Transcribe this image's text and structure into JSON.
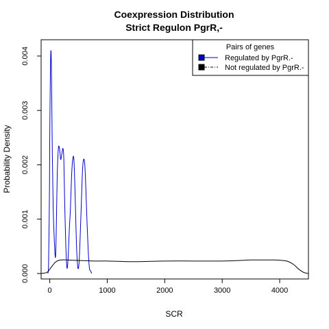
{
  "chart_data": {
    "type": "line",
    "title": "Coexpression Distribution",
    "subtitle": "Strict Regulon PgrR,-",
    "xlabel": "SCR",
    "ylabel": "Probability Density",
    "xlim": [
      -150,
      4500
    ],
    "ylim": [
      -0.0001,
      0.0043
    ],
    "xticks": [
      0,
      1000,
      2000,
      3000,
      4000
    ],
    "yticks": [
      0.0,
      0.001,
      0.002,
      0.003,
      0.004
    ],
    "xtick_labels": [
      "0",
      "1000",
      "2000",
      "3000",
      "4000"
    ],
    "ytick_labels": [
      "0.000",
      "0.001",
      "0.002",
      "0.003",
      "0.004"
    ],
    "legend": {
      "title": "Pairs of genes",
      "position": "top-right",
      "entries": [
        "Regulated by  PgrR.-",
        "Not regulated by  PgrR.-"
      ]
    },
    "series": [
      {
        "color": "#0000cc",
        "line_style": "solid",
        "x": [
          -35,
          -20,
          -5,
          0,
          10,
          20,
          30,
          45,
          60,
          80,
          100,
          115,
          130,
          150,
          170,
          190,
          210,
          230,
          245,
          260,
          280,
          300,
          320,
          340,
          360,
          380,
          400,
          420,
          440,
          455,
          470,
          490,
          510,
          530,
          550,
          570,
          590,
          610,
          630,
          650,
          670,
          690,
          710,
          730
        ],
        "y": [
          0.0,
          0.0002,
          0.0015,
          0.0025,
          0.0036,
          0.0041,
          0.0037,
          0.0022,
          0.0012,
          0.0006,
          0.0003,
          0.0009,
          0.0018,
          0.0023,
          0.0023,
          0.0021,
          0.0022,
          0.0023,
          0.0021,
          0.0013,
          0.0005,
          0.0001,
          0.0003,
          0.0008,
          0.0012,
          0.0018,
          0.0021,
          0.0021,
          0.0015,
          0.0009,
          0.0004,
          0.0001,
          0.0002,
          0.0007,
          0.0013,
          0.0019,
          0.0021,
          0.002,
          0.0015,
          0.0009,
          0.0004,
          0.0001,
          5e-05,
          0.0
        ]
      },
      {
        "color": "#000000",
        "line_style": "solid",
        "x": [
          -150,
          -50,
          0,
          50,
          100,
          150,
          200,
          300,
          500,
          800,
          1000,
          1300,
          1600,
          2000,
          2500,
          3000,
          3300,
          3500,
          3700,
          3900,
          4050,
          4150,
          4250,
          4320,
          4400,
          4450,
          4500
        ],
        "y": [
          0.0,
          2e-05,
          8e-05,
          0.00015,
          0.00021,
          0.00024,
          0.00025,
          0.00025,
          0.00024,
          0.00023,
          0.00023,
          0.00022,
          0.00022,
          0.00023,
          0.00023,
          0.00023,
          0.00024,
          0.00025,
          0.00025,
          0.00025,
          0.00024,
          0.00022,
          0.00016,
          9e-05,
          3e-05,
          1e-05,
          0.0
        ]
      }
    ]
  }
}
